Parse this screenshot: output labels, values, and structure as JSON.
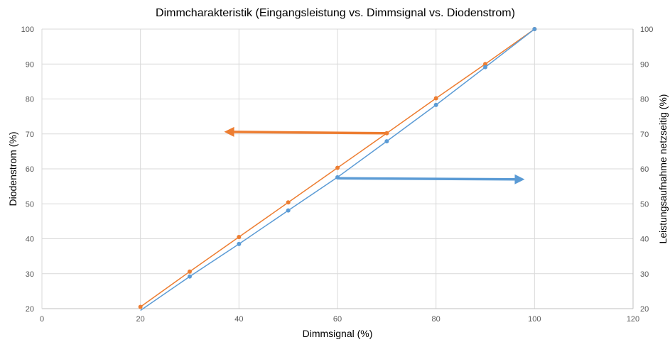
{
  "chart_data": {
    "type": "line",
    "title": "Dimmcharakteristik (Eingangsleistung vs. Dimmsignal vs. Diodenstrom)",
    "xlabel": "Dimmsignal (%)",
    "ylabel_left": "Diodenstrom (%)",
    "ylabel_right": "Leistungsaufnahme netzseitig (%)",
    "xlim": [
      0,
      120
    ],
    "ylim": [
      20,
      100
    ],
    "y2lim": [
      20,
      100
    ],
    "x_ticks": [
      "0",
      "20",
      "40",
      "60",
      "80",
      "100",
      "120"
    ],
    "y_ticks": [
      "20",
      "30",
      "40",
      "50",
      "60",
      "70",
      "80",
      "90",
      "100"
    ],
    "y2_ticks": [
      "20",
      "30",
      "40",
      "50",
      "60",
      "70",
      "80",
      "90",
      "100"
    ],
    "grid": true,
    "series": [
      {
        "axis": "right",
        "color": "#ED7D31",
        "x": [
          20,
          30,
          40,
          50,
          60,
          70,
          80,
          90,
          100
        ],
        "y": [
          20.5,
          30.6,
          40.5,
          50.4,
          60.3,
          70.2,
          80.2,
          90.0,
          100.0
        ]
      },
      {
        "axis": "left",
        "color": "#5B9BD5",
        "x": [
          20,
          30,
          40,
          50,
          60,
          70,
          80,
          90,
          100
        ],
        "y": [
          19.5,
          29.2,
          38.5,
          48.1,
          57.6,
          67.9,
          78.3,
          89.1,
          100.0
        ]
      }
    ],
    "annotations": [
      {
        "shape": "arrow",
        "direction": "left",
        "color": "#ED7D31",
        "from": [
          70,
          70.2
        ],
        "to": [
          37,
          70.6
        ]
      },
      {
        "shape": "arrow",
        "direction": "right",
        "color": "#5B9BD5",
        "from": [
          60,
          57.3
        ],
        "to": [
          98,
          57.0
        ]
      }
    ]
  }
}
